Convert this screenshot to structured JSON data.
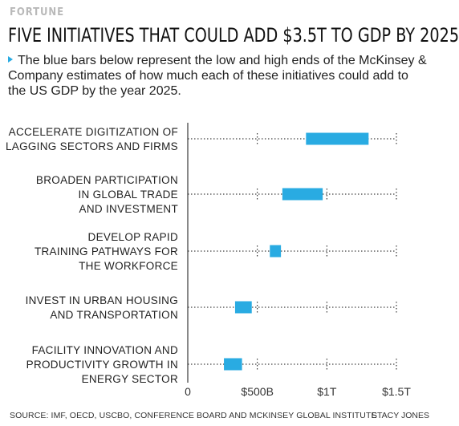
{
  "brand": "FORTUNE",
  "title": "FIVE INITIATIVES THAT COULD ADD $3.5T TO GDP BY 2025",
  "note": "The blue bars below represent the low and high ends of the McKinsey & Company estimates of how much each of these initiatives could add to the US GDP by the year 2025.",
  "footer": {
    "source": "SOURCE: IMF, OECD, USCBO, CONFERENCE BOARD AND MCKINSEY GLOBAL INSTITUTE",
    "credit": "STACY JONES"
  },
  "colors": {
    "bar": "#29abe2",
    "axis": "#111111",
    "gridline": "#111111"
  },
  "chart_data": {
    "type": "bar",
    "orientation": "horizontal",
    "series_style": "floating range (low to high)",
    "categories": [
      [
        "ACCELERATE DIGITIZATION OF",
        "LAGGING SECTORS AND FIRMS"
      ],
      [
        "BROADEN PARTICIPATION",
        "IN GLOBAL TRADE",
        "AND INVESTMENT"
      ],
      [
        "DEVELOP RAPID",
        "TRAINING PATHWAYS FOR",
        "THE WORKFORCE"
      ],
      [
        "INVEST IN URBAN HOUSING",
        "AND TRANSPORTATION"
      ],
      [
        "FACILITY INNOVATION AND",
        "PRODUCTIVITY GROWTH IN",
        "ENERGY SECTOR"
      ]
    ],
    "low": [
      850,
      680,
      590,
      340,
      260
    ],
    "high": [
      1300,
      970,
      670,
      460,
      390
    ],
    "unit": "billion USD",
    "xlim": [
      0,
      1500
    ],
    "xticks": [
      0,
      500,
      1000,
      1500
    ],
    "xtick_labels": [
      "0",
      "$500B",
      "$1T",
      "$1.5T"
    ],
    "gridlines": "dotted, one per category",
    "legend": "none"
  }
}
